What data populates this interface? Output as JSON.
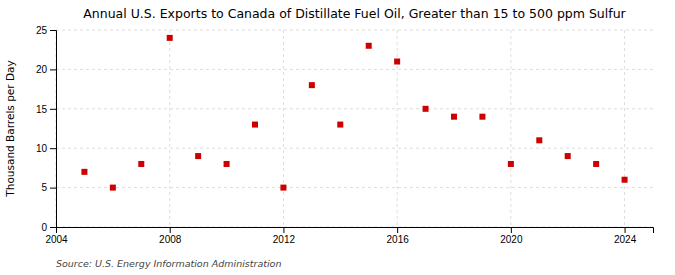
{
  "chart_data": {
    "type": "scatter",
    "title": "Annual U.S. Exports to Canada of Distillate Fuel Oil, Greater than 15 to 500 ppm Sulfur",
    "y_label": "Thousand Barrels per Day",
    "source": "Source: U.S. Energy Information Administration",
    "x": [
      2005,
      2006,
      2007,
      2008,
      2009,
      2010,
      2011,
      2012,
      2013,
      2014,
      2015,
      2016,
      2017,
      2018,
      2019,
      2020,
      2021,
      2022,
      2023,
      2024
    ],
    "values": [
      7,
      5,
      8,
      24,
      9,
      8,
      13,
      5,
      18,
      13,
      23,
      21,
      15,
      14,
      14,
      8,
      11,
      9,
      8,
      6
    ],
    "color": "#cc0000",
    "marker": "square",
    "xlim": [
      2004,
      2025
    ],
    "xticks": [
      2004,
      2008,
      2012,
      2016,
      2020,
      2024
    ],
    "ylim": [
      0,
      25
    ],
    "yticks": [
      0,
      5,
      10,
      15,
      20,
      25
    ],
    "grid": true
  }
}
